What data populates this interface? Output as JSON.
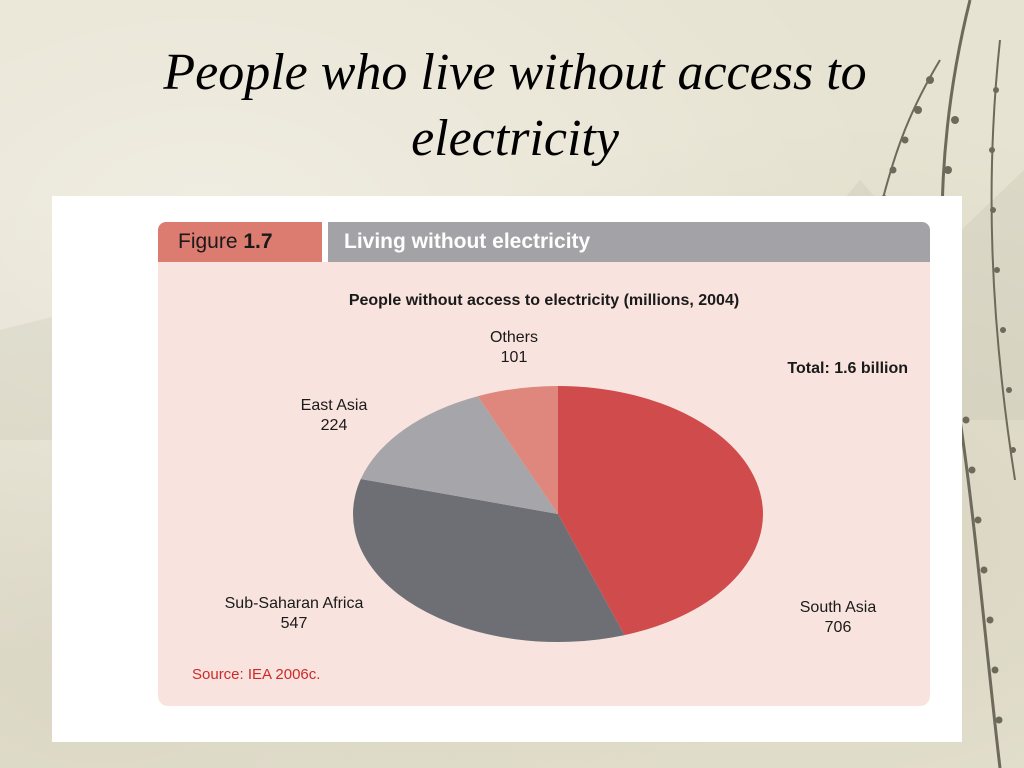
{
  "slide": {
    "title": "People who live without access to electricity"
  },
  "figure": {
    "number_prefix": "Figure",
    "number": "1.7",
    "heading": "Living without electricity",
    "total": "Total: 1.6 billion",
    "source": "Source: IEA 2006c."
  },
  "colors": {
    "header_number_bg": "#dc7b6f",
    "header_title_bg": "#a3a2a6",
    "panel_bg": "#f8e3de",
    "source_text": "#cc2a2a"
  },
  "chart_data": {
    "type": "pie",
    "title": "People without access to electricity (millions, 2004)",
    "start_angle_deg": 0,
    "direction": "clockwise",
    "slices": [
      {
        "label": "South Asia",
        "value": 706,
        "color": "#cf4b4c"
      },
      {
        "label": "Sub-Saharan Africa",
        "value": 547,
        "color": "#6e6f74"
      },
      {
        "label": "East Asia",
        "value": 224,
        "color": "#a5a5aa"
      },
      {
        "label": "Others",
        "value": 101,
        "color": "#df877c"
      }
    ]
  }
}
